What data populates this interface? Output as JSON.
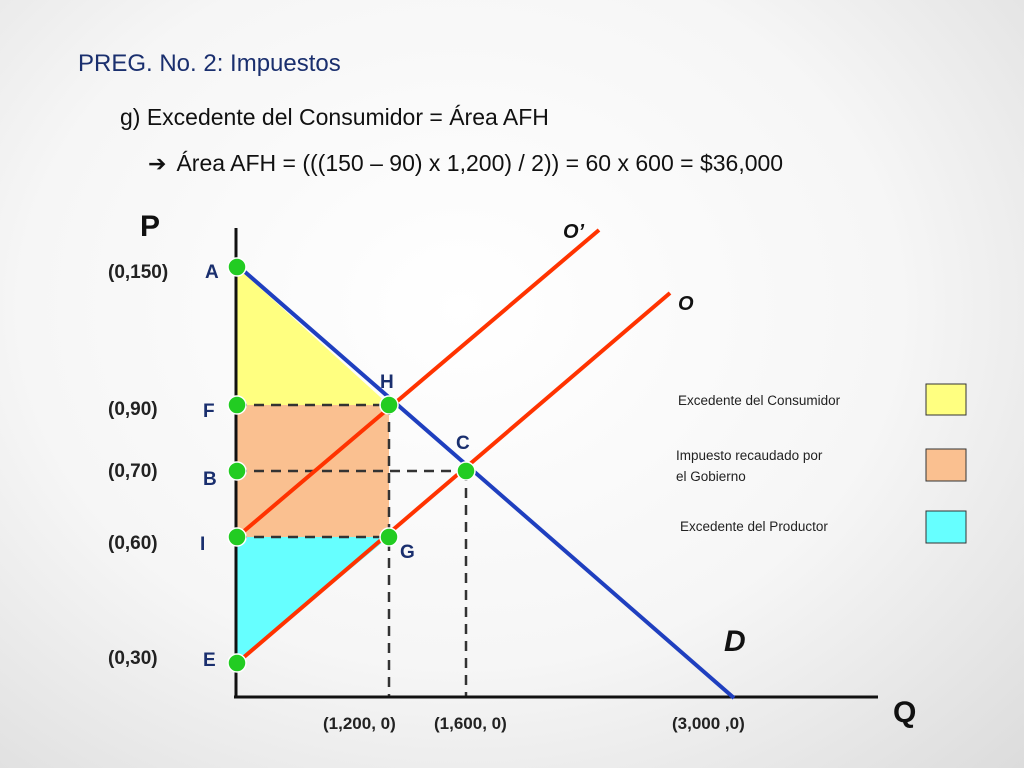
{
  "slide": {
    "title": "PREG. No. 2: Impuestos",
    "subtitle": "g) Excedente del Consumidor = Área AFH",
    "formula": "Área AFH = (((150 – 90) x 1,200) / 2)) = 60 x 600 = $36,000"
  },
  "axes": {
    "y_label": "P",
    "x_label": "Q"
  },
  "curves": {
    "demand": "D",
    "supply": "O",
    "supply_tax": "O’"
  },
  "points": [
    {
      "letter": "A",
      "coord": "(0,150)"
    },
    {
      "letter": "F",
      "coord": "(0,90)"
    },
    {
      "letter": "B",
      "coord": "(0,70)"
    },
    {
      "letter": "I",
      "coord": "(0,60)"
    },
    {
      "letter": "E",
      "coord": "(0,30)"
    },
    {
      "letter": "H"
    },
    {
      "letter": "C"
    },
    {
      "letter": "G"
    }
  ],
  "x_ticks": [
    "(1,200, 0)",
    "(1,600, 0)",
    "(3,000 ,0)"
  ],
  "legend": [
    {
      "label": "Excedente del Consumidor",
      "color": "#ffff80"
    },
    {
      "label_line1": "Impuesto recaudado por",
      "label_line2": "el Gobierno",
      "color": "#fac090"
    },
    {
      "label": "Excedente del Productor",
      "color": "#66ffff"
    }
  ],
  "colors": {
    "demand": "#1f3fbf",
    "supply": "#ff3300",
    "points": "#22cc22"
  }
}
